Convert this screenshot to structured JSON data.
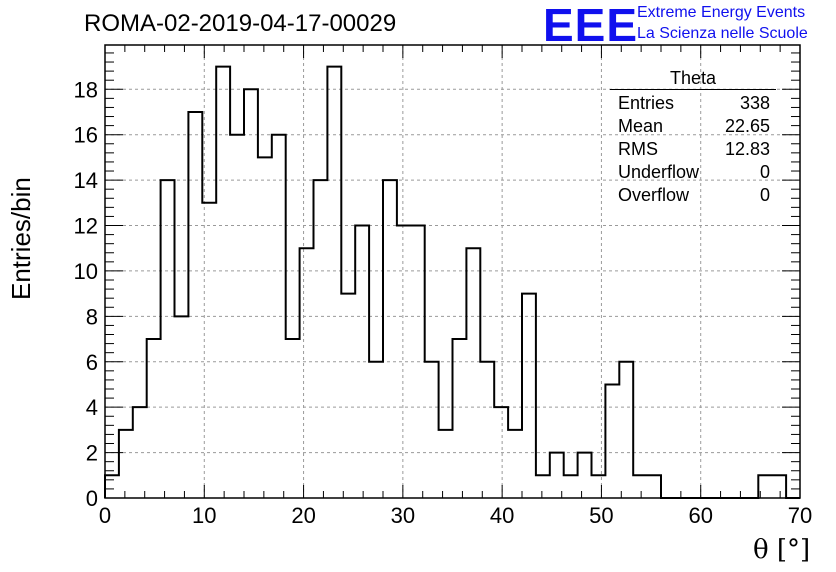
{
  "title": "ROMA-02-2019-04-17-00029",
  "logo": {
    "mark": "EEE",
    "line1": "Extreme Energy Events",
    "line2": "La Scienza nelle Scuole",
    "color": "#1010ee"
  },
  "stats": {
    "title": "Theta",
    "rows": [
      {
        "label": "Entries",
        "value": "338"
      },
      {
        "label": "Mean",
        "value": "22.65"
      },
      {
        "label": "RMS",
        "value": "12.83"
      },
      {
        "label": "Underflow",
        "value": "0"
      },
      {
        "label": "Overflow",
        "value": "0"
      }
    ]
  },
  "chart_data": {
    "type": "bar",
    "subtype": "histogram-step",
    "title": "ROMA-02-2019-04-17-00029",
    "xlabel": "θ [°]",
    "ylabel": "Entries/bin",
    "xlim": [
      0,
      70
    ],
    "ylim": [
      0,
      19.95
    ],
    "bin_width": 1.4,
    "xticks": [
      0,
      10,
      20,
      30,
      40,
      50,
      60,
      70
    ],
    "yticks": [
      0,
      2,
      4,
      6,
      8,
      10,
      12,
      14,
      16,
      18
    ],
    "grid": true,
    "bin_edges_start": 0,
    "values": [
      1,
      3,
      4,
      7,
      14,
      8,
      17,
      13,
      19,
      16,
      18,
      15,
      16,
      7,
      11,
      14,
      19,
      9,
      12,
      6,
      14,
      12,
      12,
      6,
      3,
      7,
      11,
      6,
      4,
      3,
      9,
      1,
      2,
      1,
      2,
      1,
      5,
      6,
      1,
      1,
      0,
      0,
      0,
      0,
      0,
      0,
      0,
      1,
      1,
      0
    ],
    "line_color": "#000000"
  }
}
